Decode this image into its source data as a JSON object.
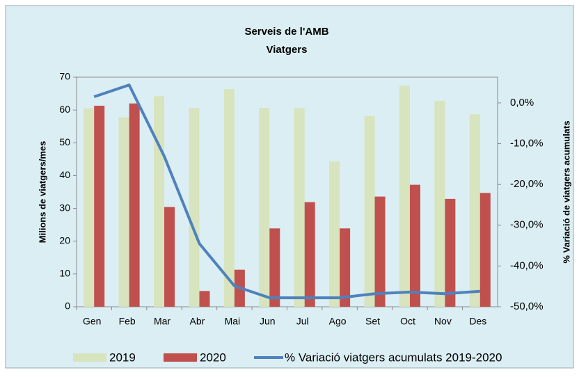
{
  "chart_data": {
    "type": "bar_line",
    "title": "Serveis de l'AMB",
    "subtitle": "Viatgers",
    "y_label": "Milions de viatgers/mes",
    "y2_label": "% Variació de viatgers acumulats",
    "categories": [
      "Gen",
      "Feb",
      "Mar",
      "Abr",
      "Mai",
      "Jun",
      "Jul",
      "Ago",
      "Set",
      "Oct",
      "Nov",
      "Des"
    ],
    "series": [
      {
        "name": "2019",
        "type": "bar",
        "color": "#d7e4bd",
        "values": [
          60.5,
          57.8,
          64.2,
          60.6,
          66.4,
          60.6,
          60.6,
          44.3,
          58.1,
          67.4,
          62.8,
          58.7
        ]
      },
      {
        "name": "2020",
        "type": "bar",
        "color": "#c0504d",
        "values": [
          61.3,
          62.0,
          30.4,
          4.8,
          11.3,
          23.9,
          31.9,
          23.9,
          33.6,
          37.2,
          32.9,
          34.7
        ]
      },
      {
        "name": "% Variació viatgers acumulats 2019-2020",
        "type": "line",
        "axis": "y2",
        "color": "#4f81bd",
        "values": [
          1.5,
          4.4,
          -13.1,
          -34.5,
          -44.9,
          -47.8,
          -47.8,
          -47.8,
          -46.8,
          -46.4,
          -46.8,
          -46.2
        ]
      }
    ],
    "ylim": [
      0,
      70
    ],
    "yticks": [
      0,
      10,
      20,
      30,
      40,
      50,
      60,
      70
    ],
    "y2lim": [
      -50,
      6.3
    ],
    "y2ticks": [
      {
        "value": 0,
        "label": "0,0%"
      },
      {
        "value": -10,
        "label": "-10,0%"
      },
      {
        "value": -20,
        "label": "-20,0%"
      },
      {
        "value": -30,
        "label": "-30,0%"
      },
      {
        "value": -40,
        "label": "-40,0%"
      },
      {
        "value": -50,
        "label": "-50,0%"
      }
    ],
    "grid": false,
    "legend": "bottom"
  }
}
